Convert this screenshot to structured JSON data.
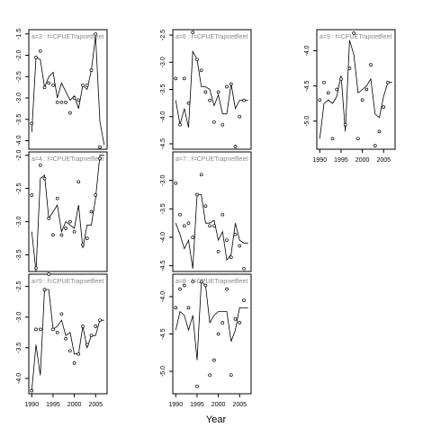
{
  "figure": {
    "xlabel": "Year"
  },
  "chart_data": [
    {
      "type": "line",
      "strip_label": "a=3 : f=CPUETrapnetfleet",
      "ylim": [
        -4.2,
        -1.4
      ],
      "yticks": [
        -1.5,
        -2.0,
        -2.5,
        -3.0,
        -3.5,
        -4.0
      ],
      "xlim": [
        1989.3,
        2007.7
      ],
      "xticks": [
        1990,
        1995,
        2000,
        2005
      ],
      "show_xticks": false,
      "series": [
        {
          "x": [
            1990,
            1991,
            1992,
            1993,
            1994,
            1995,
            1996,
            1997,
            1998,
            1999,
            2000,
            2001,
            2002,
            2003,
            2004,
            2005,
            2006,
            2007
          ],
          "values": [
            -3.8,
            -2.05,
            -2.1,
            -2.75,
            -2.5,
            -2.4,
            -3.0,
            -2.65,
            -2.85,
            -3.05,
            -2.95,
            -3.25,
            -2.7,
            -2.8,
            -2.35,
            -1.55,
            -3.55,
            -4.1
          ]
        }
      ],
      "points": {
        "x": [
          1990,
          1991,
          1992,
          1993,
          1994,
          1995,
          1996,
          1997,
          1998,
          1999,
          2000,
          2001,
          2002,
          2003,
          2004,
          2005,
          2006
        ],
        "values": [
          -3.6,
          -2.05,
          -1.9,
          -2.75,
          -2.65,
          -2.7,
          -3.1,
          -3.1,
          -3.1,
          -3.35,
          -3.0,
          -3.05,
          -2.7,
          -2.7,
          -2.35,
          -1.5,
          -4.15
        ]
      }
    },
    {
      "type": "line",
      "strip_label": "a=6 : f=CPUETrapnetfleet",
      "ylim": [
        -4.6,
        -2.4
      ],
      "yticks": [
        -2.5,
        -3.0,
        -3.5,
        -4.0,
        -4.5
      ],
      "xlim": [
        1989.3,
        2007.7
      ],
      "xticks": [
        1990,
        1995,
        2000,
        2005
      ],
      "show_xticks": false,
      "series": [
        {
          "x": [
            1990,
            1991,
            1992,
            1993,
            1994,
            1995,
            1996,
            1997,
            1998,
            1999,
            2000,
            2001,
            2002,
            2003,
            2004,
            2005,
            2006,
            2007
          ],
          "values": [
            -3.7,
            -4.15,
            -3.85,
            -4.2,
            -2.8,
            -2.95,
            -3.45,
            -3.45,
            -3.5,
            -3.8,
            -3.6,
            -3.95,
            -3.95,
            -3.4,
            -3.85,
            -3.7,
            -3.7,
            -3.7
          ]
        }
      ],
      "points": {
        "x": [
          1990,
          1991,
          1992,
          1993,
          1994,
          1995,
          1996,
          1997,
          1998,
          1999,
          2000,
          2001,
          2002,
          2003,
          2004,
          2005,
          2006
        ],
        "values": [
          -3.3,
          -4.15,
          -3.3,
          -3.75,
          -2.45,
          -2.95,
          -3.15,
          -3.55,
          -3.7,
          -4.1,
          -3.55,
          -4.15,
          -3.45,
          -3.4,
          -4.55,
          -4.0,
          -3.7
        ]
      }
    },
    {
      "type": "line",
      "strip_label": "a=9 : f=CPUETrapnetfleet",
      "ylim": [
        -5.4,
        -3.7
      ],
      "yticks": [
        -4.0,
        -4.5,
        -5.0
      ],
      "xlim": [
        1989.3,
        2007.7
      ],
      "xticks": [
        1990,
        1995,
        2000,
        2005
      ],
      "show_xticks": true,
      "series": [
        {
          "x": [
            1990,
            1991,
            1992,
            1993,
            1994,
            1995,
            1996,
            1997,
            1998,
            1999,
            2000,
            2001,
            2002,
            2003,
            2004,
            2005,
            2006,
            2007
          ],
          "values": [
            -5.25,
            -4.75,
            -4.7,
            -4.75,
            -4.65,
            -4.35,
            -5.15,
            -3.85,
            -4.05,
            -4.6,
            -4.55,
            -4.5,
            -4.4,
            -4.9,
            -4.95,
            -4.65,
            -4.45,
            -4.45
          ]
        }
      ],
      "points": {
        "x": [
          1990,
          1991,
          1992,
          1993,
          1994,
          1995,
          1996,
          1997,
          1998,
          1999,
          2000,
          2001,
          2002,
          2003,
          2004,
          2005,
          2006
        ],
        "values": [
          -4.7,
          -4.45,
          -4.6,
          -5.25,
          -4.55,
          -4.4,
          -5.05,
          -4.25,
          -3.75,
          -5.25,
          -4.7,
          -4.55,
          -4.2,
          -5.35,
          -5.15,
          -4.8,
          -4.45
        ]
      }
    },
    {
      "type": "line",
      "strip_label": "a=4 : f=CPUETrapnetfleet",
      "ylim": [
        -3.75,
        -1.95
      ],
      "yticks": [
        -2.0,
        -2.5,
        -3.0,
        -3.5
      ],
      "xlim": [
        1989.3,
        2007.7
      ],
      "xticks": [
        1990,
        1995,
        2000,
        2005
      ],
      "show_xticks": false,
      "series": [
        {
          "x": [
            1990,
            1991,
            1992,
            1993,
            1994,
            1995,
            1996,
            1997,
            1998,
            1999,
            2000,
            2001,
            2002,
            2003,
            2004,
            2005,
            2006,
            2007
          ],
          "values": [
            -3.15,
            -3.75,
            -2.35,
            -2.3,
            -2.95,
            -2.85,
            -2.75,
            -3.15,
            -3.0,
            -3.05,
            -3.1,
            -2.75,
            -3.4,
            -3.05,
            -3.05,
            -2.65,
            -2.0,
            -2.0
          ]
        }
      ],
      "points": {
        "x": [
          1990,
          1991,
          1992,
          1993,
          1994,
          1995,
          1996,
          1997,
          1998,
          1999,
          2000,
          2001,
          2002,
          2003,
          2004,
          2005,
          2006
        ],
        "values": [
          -2.6,
          -3.7,
          -2.15,
          -2.35,
          -2.95,
          -3.2,
          -2.65,
          -3.2,
          -3.1,
          -3.0,
          -3.15,
          -2.4,
          -3.35,
          -3.25,
          -2.85,
          -2.6,
          -2.05
        ]
      }
    },
    {
      "type": "line",
      "strip_label": "a=7 : f=CPUETrapnetfleet",
      "ylim": [
        -4.6,
        -2.5
      ],
      "yticks": [
        -3.0,
        -3.5,
        -4.0,
        -4.5
      ],
      "xlim": [
        1989.3,
        2007.7
      ],
      "xticks": [
        1990,
        1995,
        2000,
        2005
      ],
      "show_xticks": false,
      "series": [
        {
          "x": [
            1990,
            1991,
            1992,
            1993,
            1994,
            1995,
            1996,
            1997,
            1998,
            1999,
            2000,
            2001,
            2002,
            2003,
            2004,
            2005,
            2006,
            2007
          ],
          "values": [
            -3.75,
            -3.95,
            -4.2,
            -4.05,
            -4.55,
            -3.25,
            -3.25,
            -3.75,
            -3.75,
            -3.7,
            -4.05,
            -3.9,
            -4.4,
            -4.3,
            -3.75,
            -4.05,
            -4.1,
            -4.1
          ]
        }
      ],
      "points": {
        "x": [
          1990,
          1991,
          1992,
          1993,
          1994,
          1995,
          1996,
          1997,
          1998,
          1999,
          2000,
          2001,
          2002,
          2003,
          2004,
          2005,
          2006
        ],
        "values": [
          -3.05,
          -3.6,
          -3.8,
          -3.75,
          -4.0,
          -3.25,
          -2.9,
          -3.45,
          -3.8,
          -3.8,
          -4.25,
          -3.6,
          -4.05,
          -4.35,
          -3.95,
          -4.15,
          -4.55
        ]
      }
    },
    {
      "type": "line",
      "strip_label": "a=5 : f=CPUETrapnetfleet",
      "ylim": [
        -4.25,
        -2.3
      ],
      "yticks": [
        -2.5,
        -3.0,
        -3.5,
        -4.0
      ],
      "xlim": [
        1989.3,
        2007.7
      ],
      "xticks": [
        1990,
        1995,
        2000,
        2005
      ],
      "show_xticks": true,
      "series": [
        {
          "x": [
            1990,
            1991,
            1992,
            1993,
            1994,
            1995,
            1996,
            1997,
            1998,
            1999,
            2000,
            2001,
            2002,
            2003,
            2004,
            2005,
            2006,
            2007
          ],
          "values": [
            -4.2,
            -3.45,
            -3.95,
            -2.55,
            -2.55,
            -3.2,
            -3.15,
            -3.05,
            -3.3,
            -3.25,
            -3.6,
            -3.6,
            -3.15,
            -3.5,
            -3.3,
            -3.3,
            -3.05,
            -3.05
          ]
        }
      ],
      "points": {
        "x": [
          1990,
          1991,
          1992,
          1993,
          1994,
          1995,
          1996,
          1997,
          1998,
          1999,
          2000,
          2001,
          2002,
          2003,
          2004,
          2005,
          2006
        ],
        "values": [
          -4.2,
          -3.2,
          -3.2,
          -2.55,
          -2.3,
          -3.2,
          -3.25,
          -2.95,
          -3.35,
          -3.55,
          -3.75,
          -3.6,
          -3.15,
          -3.45,
          -3.3,
          -3.15,
          -3.05
        ]
      }
    },
    {
      "type": "line",
      "strip_label": "a=8 : f=CPUETrapnetfleet",
      "ylim": [
        -5.3,
        -3.7
      ],
      "yticks": [
        -4.0,
        -4.5,
        -5.0
      ],
      "xlim": [
        1989.3,
        2007.7
      ],
      "xticks": [
        1990,
        1995,
        2000,
        2005
      ],
      "show_xticks": true,
      "series": [
        {
          "x": [
            1990,
            1991,
            1992,
            1993,
            1994,
            1995,
            1996,
            1997,
            1998,
            1999,
            2000,
            2001,
            2002,
            2003,
            2004,
            2005,
            2006,
            2007
          ],
          "values": [
            -4.45,
            -4.2,
            -4.25,
            -4.45,
            -4.25,
            -4.85,
            -3.8,
            -3.85,
            -4.35,
            -4.25,
            -4.2,
            -4.2,
            -4.2,
            -4.6,
            -4.45,
            -4.15,
            -4.15,
            -4.15
          ]
        }
      ],
      "points": {
        "x": [
          1990,
          1991,
          1992,
          1993,
          1994,
          1995,
          1996,
          1997,
          1998,
          1999,
          2000,
          2001,
          2002,
          2003,
          2004,
          2005,
          2006
        ],
        "values": [
          -4.15,
          -3.9,
          -3.85,
          -4.15,
          -3.8,
          -5.2,
          -3.8,
          -3.85,
          -5.05,
          -4.85,
          -4.5,
          -4.35,
          -3.9,
          -5.05,
          -4.3,
          -4.35,
          -4.05
        ]
      }
    }
  ]
}
